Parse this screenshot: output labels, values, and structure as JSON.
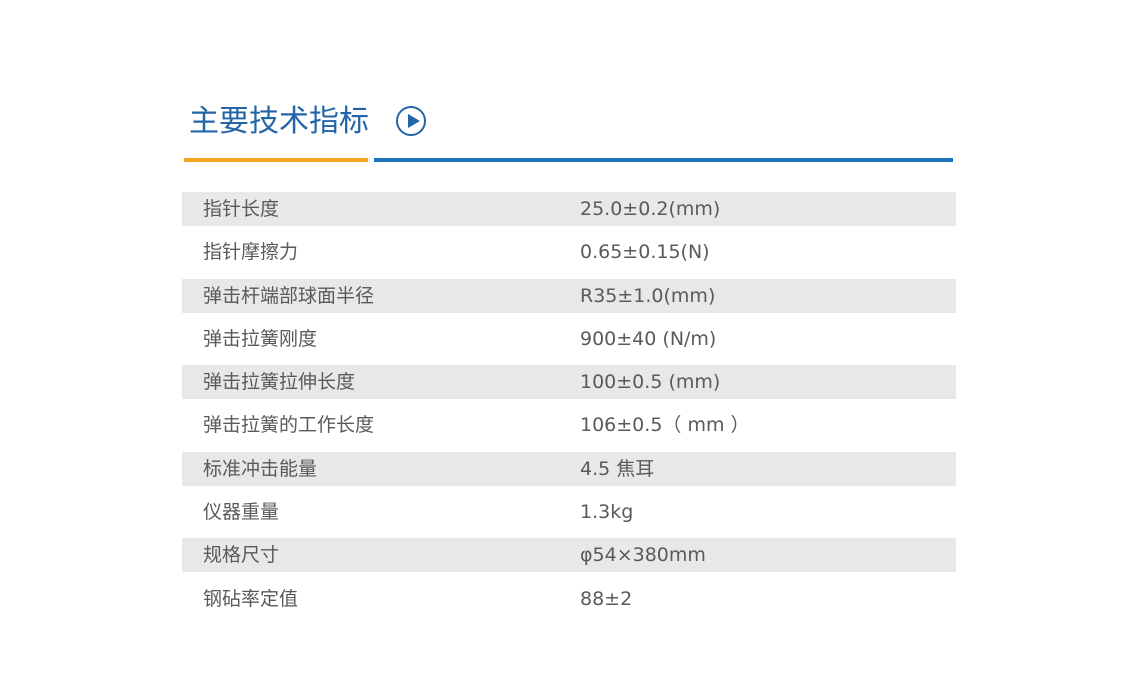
{
  "header": {
    "title": "主要技术指标",
    "icon": "play-circle-icon",
    "colors": {
      "title": "#2366a8",
      "accent_orange": "#f6a623",
      "accent_blue": "#1b70bb",
      "row_alt": "#e8e8e8"
    }
  },
  "specs": [
    {
      "label": "指针长度",
      "value": "25.0±0.2(mm)"
    },
    {
      "label": "指针摩擦力",
      "value": "0.65±0.15(N)"
    },
    {
      "label": "弹击杆端部球面半径",
      "value": "R35±1.0(mm)"
    },
    {
      "label": "弹击拉簧刚度",
      "value": "900±40 (N/m)"
    },
    {
      "label": "弹击拉簧拉伸长度",
      "value": "100±0.5 (mm)"
    },
    {
      "label": "弹击拉簧的工作长度",
      "value": "106±0.5（ mm ）"
    },
    {
      "label": "标准冲击能量",
      "value": "4.5 焦耳"
    },
    {
      "label": "仪器重量",
      "value": "1.3kg"
    },
    {
      "label": "规格尺寸",
      "value": "φ54×380mm"
    },
    {
      "label": "钢砧率定值",
      "value": "88±2"
    }
  ]
}
